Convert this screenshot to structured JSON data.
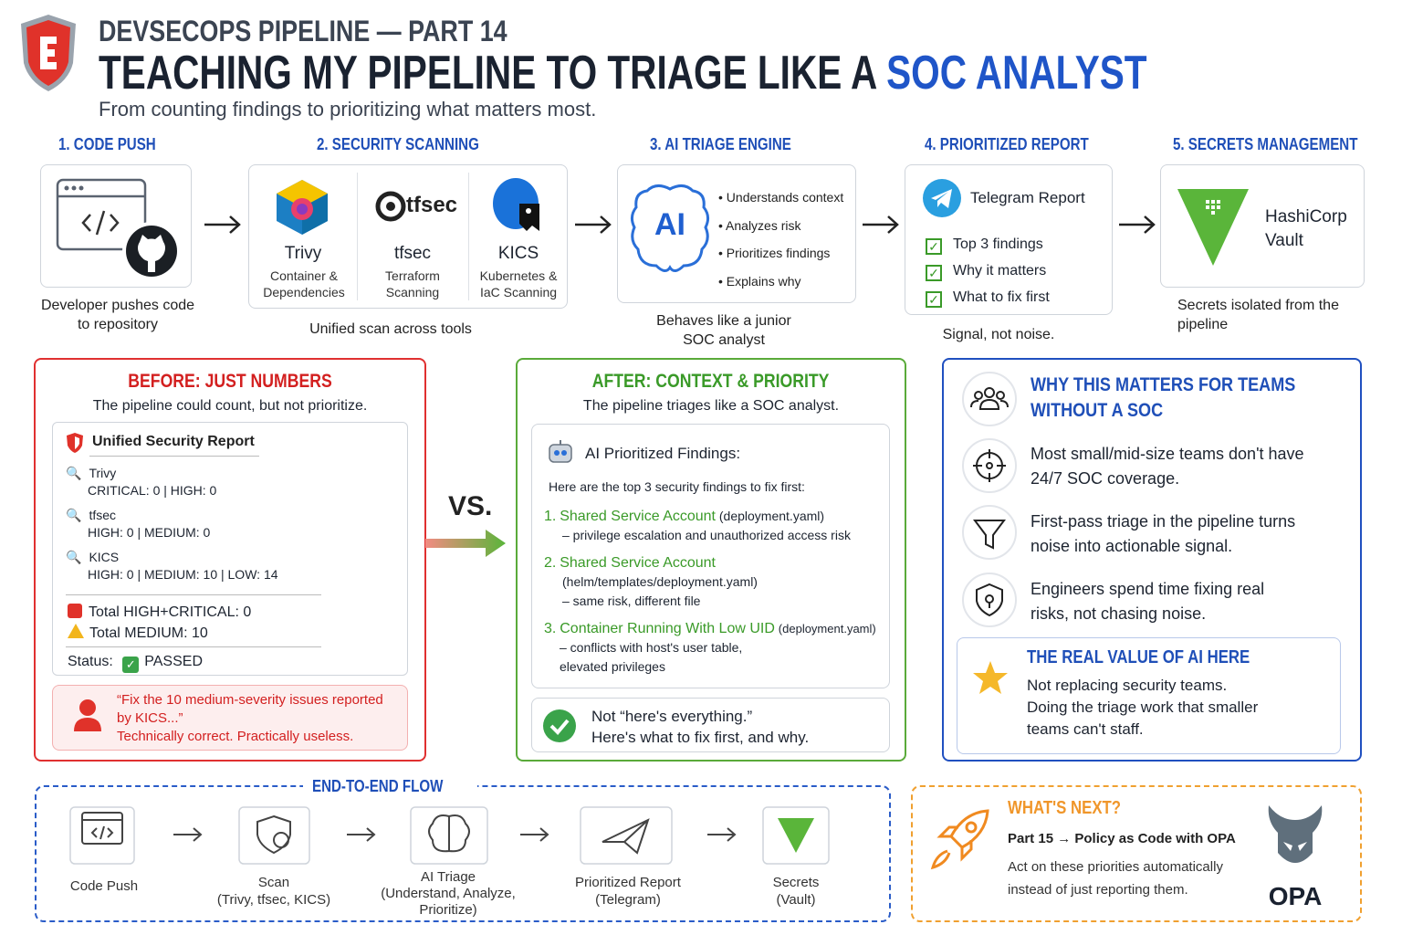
{
  "header": {
    "series": "DEVSECOPS PIPELINE — PART 14",
    "title_main": "TEACHING MY PIPELINE TO TRIAGE LIKE A",
    "title_accent": "SOC ANALYST",
    "subtitle": "From counting findings to prioritizing what matters most."
  },
  "steps": [
    {
      "heading": "1. CODE PUSH",
      "caption": "Developer pushes code to repository"
    },
    {
      "heading": "2. SECURITY SCANNING",
      "tools": [
        {
          "name": "Trivy",
          "desc": "Container & Dependencies"
        },
        {
          "logo": "tfsec",
          "name": "tfsec",
          "desc": "Terraform Scanning"
        },
        {
          "name": "KICS",
          "desc": "Kubernetes & IaC Scanning"
        }
      ],
      "caption": "Unified scan across tools"
    },
    {
      "heading": "3. AI TRIAGE ENGINE",
      "icon": "AI",
      "bullets": [
        "Understands context",
        "Analyzes risk",
        "Prioritizes findings",
        "Explains why"
      ],
      "caption": "Behaves like a junior SOC analyst"
    },
    {
      "heading": "4. PRIORITIZED REPORT",
      "title": "Telegram Report",
      "checks": [
        "Top 3 findings",
        "Why it matters",
        "What to fix first"
      ],
      "caption": "Signal, not noise."
    },
    {
      "heading": "5. SECRETS MANAGEMENT",
      "title": "HashiCorp Vault",
      "caption": "Secrets isolated from the pipeline"
    }
  ],
  "before": {
    "title": "BEFORE: JUST NUMBERS",
    "subtitle": "The pipeline could count, but not prioritize.",
    "report_title": "Unified Security Report",
    "tools": [
      {
        "name": "Trivy",
        "counts": "CRITICAL: 0  |  HIGH: 0"
      },
      {
        "name": "tfsec",
        "counts": "HIGH: 0  |  MEDIUM: 0"
      },
      {
        "name": "KICS",
        "counts": "HIGH: 0  |  MEDIUM: 10  |  LOW: 14"
      }
    ],
    "totals": [
      "Total HIGH+CRITICAL: 0",
      "Total MEDIUM: 10"
    ],
    "status_label": "Status:",
    "status_value": "PASSED",
    "quote": "“Fix the 10 medium-severity issues reported by KICS...”",
    "verdict": "Technically correct. Practically useless."
  },
  "vs": "VS.",
  "after": {
    "title": "AFTER: CONTEXT & PRIORITY",
    "subtitle": "The pipeline triages like a SOC analyst.",
    "box_title": "AI Prioritized Findings:",
    "intro": "Here are the top 3 security findings to fix first:",
    "findings": [
      {
        "num": "1.",
        "name": "Shared Service Account",
        "file": "(deployment.yaml)",
        "detail": "– privilege escalation and unauthorized access risk"
      },
      {
        "num": "2.",
        "name": "Shared Service Account",
        "file": "(helm/templates/deployment.yaml)",
        "detail": "– same risk, different file"
      },
      {
        "num": "3.",
        "name": "Container Running With Low UID",
        "file": "(deployment.yaml)",
        "detail": "– conflicts with host's user table, elevated privileges"
      }
    ],
    "callout": [
      "Not “here's everything.”",
      "Here's what to fix first, and why."
    ]
  },
  "why": {
    "title": "WHY THIS MATTERS FOR TEAMS WITHOUT A SOC",
    "points": [
      "Most small/mid-size teams don't have 24/7 SOC coverage.",
      "First-pass triage in the pipeline turns noise into actionable signal.",
      "Engineers spend time fixing real risks, not chasing noise."
    ],
    "value_title": "THE REAL VALUE OF AI HERE",
    "value_lines": [
      "Not replacing security teams.",
      "Doing the triage work that smaller teams can't staff."
    ]
  },
  "flow": {
    "title": "END-TO-END FLOW",
    "steps": [
      {
        "label": "Code Push"
      },
      {
        "label": "Scan",
        "sub": "(Trivy, tfsec, KICS)"
      },
      {
        "label": "AI Triage",
        "sub": "(Understand, Analyze, Prioritize)"
      },
      {
        "label": "Prioritized Report",
        "sub": "(Telegram)"
      },
      {
        "label": "Secrets",
        "sub": "(Vault)"
      }
    ]
  },
  "next": {
    "title": "WHAT'S NEXT?",
    "part": "Part 15 → Policy as Code with OPA",
    "text": "Act on these priorities automatically instead of just reporting them.",
    "logo": "OPA"
  }
}
